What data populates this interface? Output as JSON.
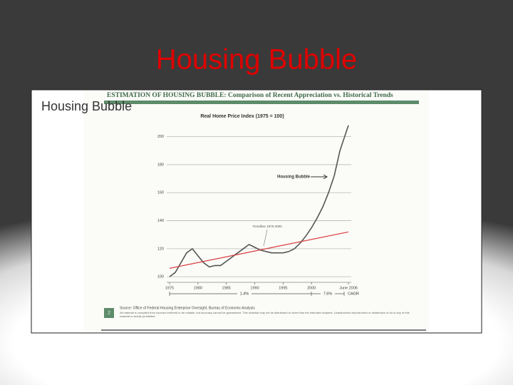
{
  "slide": {
    "title": "Housing Bubble",
    "caption": "Housing Bubble",
    "page_number": "2",
    "source": "Source: Office of Federal Housing Enterprise Oversight, Bureau of Economic Analysis",
    "disclaimer": "All material is compiled from sources believed to be reliable, but accuracy cannot be guaranteed. This material may not be distributed to other than the intended recipient. Unauthorized reproduction or distribution of all or any of this material is strictly prohibited."
  },
  "chart_data": {
    "type": "line",
    "title": "ESTIMATION OF HOUSING BUBBLE: Comparison of Recent Appreciation vs. Historical Trends",
    "subtitle": "Real Home Price Index (1975 = 100)",
    "series": [
      {
        "name": "Real Home Price Index",
        "color": "#555555",
        "x": [
          1975,
          1976,
          1977,
          1978,
          1979,
          1980,
          1981,
          1982,
          1983,
          1984,
          1985,
          1986,
          1987,
          1988,
          1989,
          1990,
          1991,
          1992,
          1993,
          1994,
          1995,
          1996,
          1997,
          1998,
          1999,
          2000,
          2001,
          2002,
          2003,
          2004,
          2005,
          2006.5
        ],
        "values": [
          100,
          103,
          110,
          117,
          120,
          115,
          110,
          107,
          108,
          108,
          111,
          114,
          117,
          120,
          123,
          121,
          119,
          118,
          117,
          117,
          117,
          118,
          120,
          124,
          129,
          135,
          142,
          150,
          160,
          172,
          190,
          208
        ]
      },
      {
        "name": "Trendline 1975-2000",
        "color": "#d93a3a",
        "x": [
          1975,
          2006.5
        ],
        "values": [
          106,
          132
        ]
      }
    ],
    "xlim": [
      1974.5,
      2007
    ],
    "ylim": [
      96,
      210
    ],
    "xticks": [
      1975,
      1980,
      1985,
      1990,
      1995,
      2000,
      {
        "value": 2006.5,
        "label": "June 2006"
      }
    ],
    "yticks": [
      100,
      120,
      140,
      160,
      180,
      200
    ],
    "grid": true,
    "annotations": {
      "bubble": "Housing Bubble",
      "trend_cagr": "1.4%",
      "bubble_cagr": "7.6%",
      "cagr": "CAGR"
    }
  }
}
